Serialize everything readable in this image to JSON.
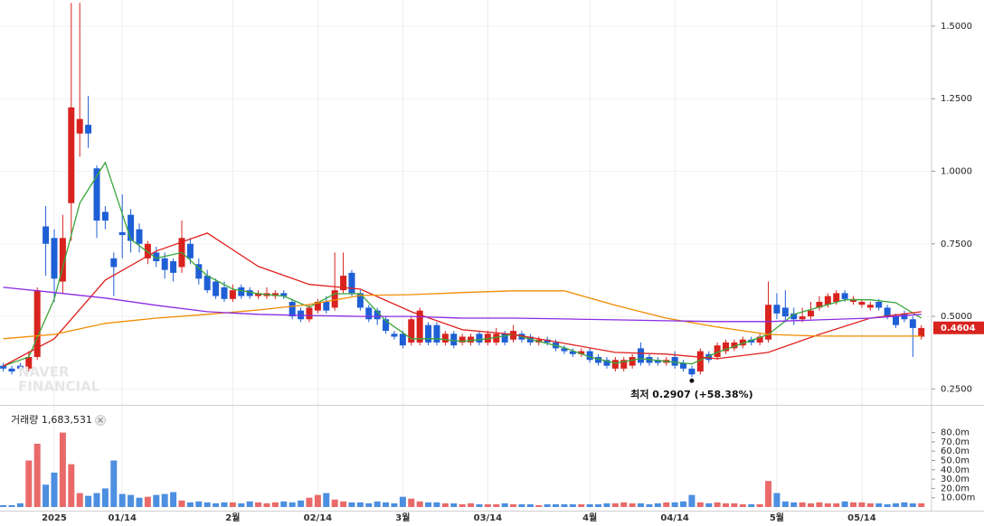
{
  "chart_data": [
    {
      "type": "candlestick",
      "xlim": [
        -0.383,
        109.2
      ],
      "ylim": [
        0.195,
        1.59
      ],
      "xticks": [
        {
          "value": 6,
          "label": "2025"
        },
        {
          "value": 14,
          "label": "01/14"
        },
        {
          "value": 27,
          "label": "2월"
        },
        {
          "value": 37,
          "label": "02/14"
        },
        {
          "value": 47,
          "label": "3월"
        },
        {
          "value": 57,
          "label": "03/14"
        },
        {
          "value": 69,
          "label": "4월"
        },
        {
          "value": 79,
          "label": "04/14"
        },
        {
          "value": 91,
          "label": "5월"
        },
        {
          "value": 101,
          "label": "05/14"
        }
      ],
      "yticks": [
        {
          "value": 1.5,
          "label": "1.5000"
        },
        {
          "value": 1.25,
          "label": "1.2500"
        },
        {
          "value": 1.0,
          "label": "1.0000"
        },
        {
          "value": 0.75,
          "label": "0.7500"
        },
        {
          "value": 0.5,
          "label": "0.5000"
        },
        {
          "value": 0.25,
          "label": "0.2500"
        }
      ],
      "grid": true,
      "up_color": "#d8231f",
      "down_color": "#1f5fd6",
      "open": [
        0.33,
        0.32,
        0.33,
        0.32,
        0.36,
        0.81,
        0.77,
        0.62,
        0.89,
        1.13,
        1.16,
        1.01,
        0.86,
        0.7,
        0.79,
        0.85,
        0.8,
        0.7,
        0.72,
        0.7,
        0.69,
        0.67,
        0.75,
        0.68,
        0.64,
        0.62,
        0.6,
        0.56,
        0.6,
        0.59,
        0.57,
        0.57,
        0.57,
        0.58,
        0.55,
        0.52,
        0.49,
        0.52,
        0.55,
        0.53,
        0.59,
        0.65,
        0.58,
        0.53,
        0.52,
        0.49,
        0.44,
        0.44,
        0.41,
        0.41,
        0.47,
        0.47,
        0.41,
        0.44,
        0.41,
        0.41,
        0.44,
        0.41,
        0.41,
        0.44,
        0.42,
        0.44,
        0.43,
        0.41,
        0.42,
        0.41,
        0.39,
        0.38,
        0.37,
        0.38,
        0.36,
        0.35,
        0.32,
        0.32,
        0.33,
        0.39,
        0.36,
        0.35,
        0.34,
        0.36,
        0.34,
        0.32,
        0.31,
        0.37,
        0.36,
        0.38,
        0.39,
        0.4,
        0.42,
        0.41,
        0.42,
        0.54,
        0.53,
        0.51,
        0.49,
        0.5,
        0.53,
        0.54,
        0.55,
        0.58,
        0.55,
        0.54,
        0.53,
        0.55,
        0.53,
        0.5,
        0.51,
        0.49,
        0.43
      ],
      "high": [
        0.34,
        0.33,
        0.34,
        0.38,
        0.6,
        0.88,
        0.8,
        0.85,
        1.58,
        1.58,
        1.26,
        1.02,
        0.88,
        0.72,
        0.92,
        0.87,
        0.82,
        0.76,
        0.74,
        0.72,
        0.7,
        0.83,
        0.77,
        0.7,
        0.66,
        0.63,
        0.62,
        0.61,
        0.61,
        0.6,
        0.59,
        0.6,
        0.59,
        0.59,
        0.56,
        0.53,
        0.54,
        0.56,
        0.57,
        0.72,
        0.72,
        0.66,
        0.59,
        0.54,
        0.53,
        0.5,
        0.45,
        0.45,
        0.5,
        0.53,
        0.48,
        0.48,
        0.45,
        0.45,
        0.44,
        0.44,
        0.45,
        0.45,
        0.46,
        0.45,
        0.47,
        0.45,
        0.44,
        0.43,
        0.43,
        0.42,
        0.4,
        0.39,
        0.39,
        0.39,
        0.37,
        0.36,
        0.36,
        0.36,
        0.37,
        0.41,
        0.37,
        0.36,
        0.36,
        0.38,
        0.35,
        0.33,
        0.39,
        0.38,
        0.41,
        0.42,
        0.42,
        0.43,
        0.43,
        0.44,
        0.62,
        0.58,
        0.59,
        0.53,
        0.53,
        0.55,
        0.57,
        0.58,
        0.59,
        0.59,
        0.57,
        0.56,
        0.55,
        0.56,
        0.54,
        0.51,
        0.52,
        0.5,
        0.47
      ],
      "low": [
        0.31,
        0.3,
        0.31,
        0.31,
        0.35,
        0.64,
        0.55,
        0.58,
        0.76,
        1.05,
        1.08,
        0.77,
        0.8,
        0.57,
        0.7,
        0.72,
        0.72,
        0.68,
        0.67,
        0.63,
        0.62,
        0.65,
        0.68,
        0.61,
        0.58,
        0.56,
        0.55,
        0.55,
        0.56,
        0.56,
        0.56,
        0.56,
        0.56,
        0.56,
        0.49,
        0.48,
        0.48,
        0.51,
        0.51,
        0.52,
        0.58,
        0.57,
        0.52,
        0.48,
        0.47,
        0.44,
        0.42,
        0.39,
        0.4,
        0.4,
        0.4,
        0.4,
        0.4,
        0.39,
        0.4,
        0.4,
        0.4,
        0.4,
        0.4,
        0.4,
        0.41,
        0.41,
        0.4,
        0.4,
        0.4,
        0.38,
        0.37,
        0.36,
        0.36,
        0.34,
        0.33,
        0.32,
        0.31,
        0.31,
        0.32,
        0.33,
        0.33,
        0.33,
        0.33,
        0.32,
        0.31,
        0.2907,
        0.3,
        0.34,
        0.35,
        0.37,
        0.38,
        0.39,
        0.4,
        0.4,
        0.41,
        0.49,
        0.48,
        0.47,
        0.48,
        0.49,
        0.52,
        0.53,
        0.54,
        0.55,
        0.54,
        0.53,
        0.52,
        0.52,
        0.49,
        0.46,
        0.48,
        0.36,
        0.42
      ],
      "close": [
        0.32,
        0.31,
        0.32,
        0.36,
        0.59,
        0.75,
        0.63,
        0.77,
        1.22,
        1.18,
        1.13,
        0.83,
        0.83,
        0.67,
        0.78,
        0.76,
        0.75,
        0.75,
        0.69,
        0.66,
        0.65,
        0.77,
        0.7,
        0.63,
        0.59,
        0.57,
        0.56,
        0.59,
        0.57,
        0.57,
        0.58,
        0.58,
        0.58,
        0.57,
        0.5,
        0.49,
        0.53,
        0.55,
        0.52,
        0.59,
        0.64,
        0.58,
        0.53,
        0.49,
        0.49,
        0.45,
        0.43,
        0.4,
        0.49,
        0.52,
        0.41,
        0.41,
        0.44,
        0.4,
        0.43,
        0.43,
        0.41,
        0.44,
        0.44,
        0.41,
        0.45,
        0.42,
        0.41,
        0.42,
        0.41,
        0.39,
        0.38,
        0.37,
        0.38,
        0.35,
        0.34,
        0.33,
        0.35,
        0.35,
        0.36,
        0.34,
        0.34,
        0.34,
        0.35,
        0.33,
        0.32,
        0.3,
        0.38,
        0.35,
        0.4,
        0.41,
        0.41,
        0.42,
        0.41,
        0.43,
        0.54,
        0.51,
        0.5,
        0.49,
        0.5,
        0.52,
        0.55,
        0.57,
        0.58,
        0.56,
        0.56,
        0.55,
        0.54,
        0.53,
        0.5,
        0.47,
        0.49,
        0.46,
        0.46
      ],
      "series": [
        {
          "color": "#3aa63a",
          "x": [
            0,
            3,
            6,
            9,
            12,
            15,
            18,
            21,
            24,
            27,
            30,
            33,
            36,
            39,
            42,
            45,
            48,
            51,
            54,
            57,
            60,
            63,
            66,
            69,
            72,
            75,
            78,
            81,
            84,
            87,
            90,
            93,
            96,
            99,
            102,
            105,
            108
          ],
          "values": [
            0.329,
            0.36,
            0.56,
            0.89,
            1.03,
            0.765,
            0.7,
            0.72,
            0.64,
            0.594,
            0.578,
            0.57,
            0.532,
            0.578,
            0.578,
            0.485,
            0.423,
            0.423,
            0.414,
            0.423,
            0.438,
            0.414,
            0.392,
            0.36,
            0.339,
            0.354,
            0.345,
            0.336,
            0.376,
            0.407,
            0.438,
            0.507,
            0.532,
            0.557,
            0.557,
            0.547,
            0.494
          ]
        },
        {
          "color": "#e0211f",
          "x": [
            0,
            6,
            12,
            18,
            24,
            30,
            36,
            42,
            48,
            54,
            60,
            66,
            72,
            78,
            84,
            90,
            96,
            102,
            108
          ],
          "values": [
            0.329,
            0.423,
            0.625,
            0.725,
            0.787,
            0.672,
            0.61,
            0.594,
            0.516,
            0.454,
            0.438,
            0.407,
            0.376,
            0.37,
            0.354,
            0.376,
            0.438,
            0.494,
            0.516
          ]
        },
        {
          "color": "#f08c00",
          "x": [
            0,
            6,
            12,
            18,
            24,
            30,
            36,
            42,
            48,
            54,
            60,
            66,
            72,
            78,
            84,
            90,
            96,
            102,
            108
          ],
          "values": [
            0.423,
            0.438,
            0.476,
            0.494,
            0.507,
            0.522,
            0.541,
            0.572,
            0.575,
            0.582,
            0.588,
            0.588,
            0.538,
            0.494,
            0.463,
            0.438,
            0.432,
            0.432,
            0.432
          ]
        },
        {
          "color": "#8a2be2",
          "x": [
            0,
            6,
            12,
            18,
            24,
            30,
            36,
            42,
            48,
            54,
            60,
            66,
            72,
            78,
            84,
            90,
            96,
            102,
            108
          ],
          "values": [
            0.6,
            0.582,
            0.563,
            0.538,
            0.516,
            0.507,
            0.503,
            0.5,
            0.5,
            0.494,
            0.494,
            0.491,
            0.488,
            0.485,
            0.482,
            0.482,
            0.488,
            0.494,
            0.507
          ]
        }
      ],
      "last_price": 0.4604,
      "annotation": "최저 0.2907 (+58.38%)",
      "watermark": [
        "NAVER",
        "FINANCIAL"
      ]
    },
    {
      "type": "bar",
      "title": "거래량 1,683,531",
      "xlim": [
        -0.383,
        109.2
      ],
      "ylim": [
        0,
        100
      ],
      "yticks": [
        {
          "value": 80,
          "label": "80.0m"
        },
        {
          "value": 70,
          "label": "70.0m"
        },
        {
          "value": 60,
          "label": "60.0m"
        },
        {
          "value": 50,
          "label": "50.0m"
        },
        {
          "value": 40,
          "label": "40.0m"
        },
        {
          "value": 30,
          "label": "30.0m"
        },
        {
          "value": 20,
          "label": "20.0m"
        },
        {
          "value": 10,
          "label": "10.00m"
        }
      ],
      "up_color": "#ea6a6a",
      "down_color": "#4d8fe0",
      "values": [
        2,
        2,
        4,
        50,
        68,
        24,
        37,
        80,
        46,
        15,
        12,
        15,
        20,
        50,
        14,
        13,
        10,
        11,
        13,
        14,
        16,
        7,
        5,
        6,
        5,
        4,
        5,
        5,
        4,
        6,
        5,
        4,
        5,
        6,
        5,
        7,
        10,
        13,
        15,
        8,
        6,
        5,
        5,
        4,
        6,
        5,
        4,
        11,
        9,
        6,
        5,
        5,
        4,
        4,
        3,
        4,
        3,
        3,
        3,
        4,
        3,
        3,
        3,
        2,
        3,
        3,
        3,
        3,
        3,
        3,
        3,
        4,
        4,
        5,
        4,
        4,
        3,
        4,
        5,
        5,
        6,
        13,
        5,
        4,
        5,
        4,
        4,
        3,
        3,
        3,
        28,
        15,
        6,
        5,
        5,
        4,
        5,
        4,
        4,
        6,
        5,
        5,
        4,
        4,
        3,
        4,
        5,
        4,
        4
      ]
    }
  ]
}
